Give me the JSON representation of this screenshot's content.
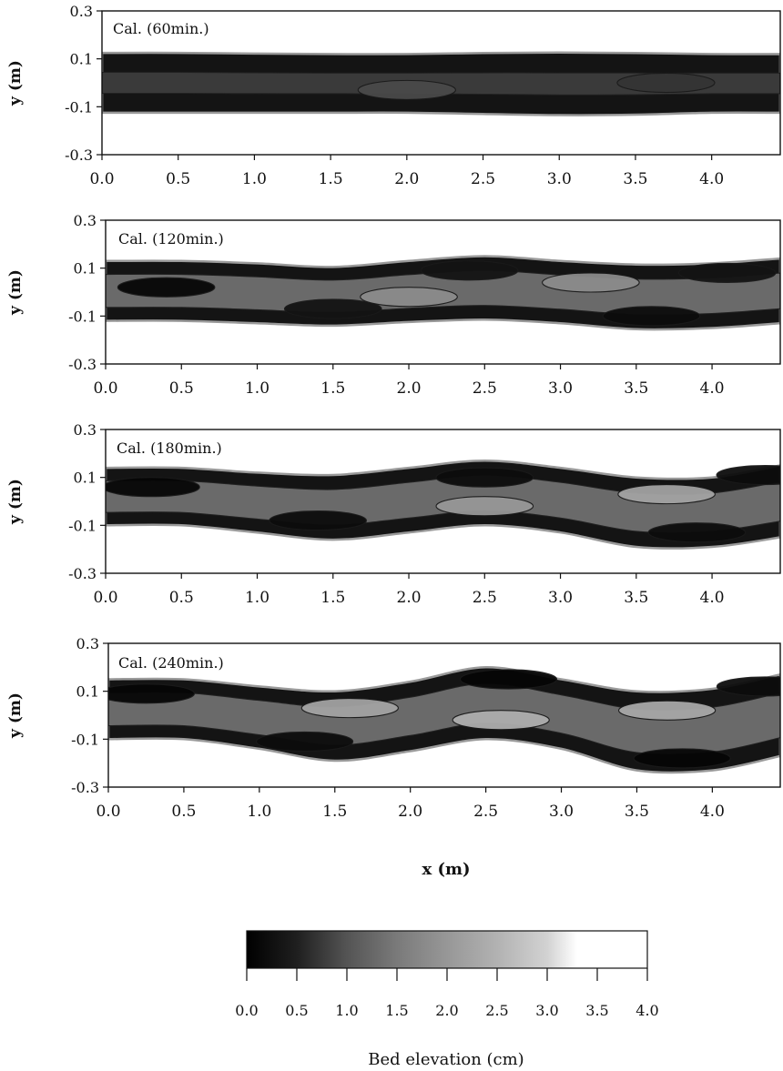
{
  "chart_data": [
    {
      "type": "heatmap",
      "title": "Cal. (60min.)",
      "xlabel": "",
      "ylabel": "y (m)",
      "xlim": [
        0.0,
        4.45
      ],
      "ylim": [
        -0.3,
        0.3
      ],
      "xticks": [
        "0.0",
        "0.5",
        "1.0",
        "1.5",
        "2.0",
        "2.5",
        "3.0",
        "3.5",
        "4.0"
      ],
      "yticks": [
        "0.3",
        "0.1",
        "-0.1",
        "-0.3"
      ],
      "channel": {
        "x": [
          0.0,
          0.5,
          1.0,
          1.5,
          2.0,
          2.5,
          3.0,
          3.5,
          4.0,
          4.45
        ],
        "upper": [
          0.125,
          0.125,
          0.122,
          0.12,
          0.12,
          0.124,
          0.126,
          0.124,
          0.12,
          0.12
        ],
        "lower": [
          -0.125,
          -0.125,
          -0.125,
          -0.125,
          -0.125,
          -0.13,
          -0.135,
          -0.133,
          -0.125,
          -0.125
        ]
      },
      "features": [
        {
          "x": 2.0,
          "y": -0.03,
          "elevation": 0.9
        },
        {
          "x": 3.7,
          "y": 0.0,
          "elevation": 0.7
        }
      ]
    },
    {
      "type": "heatmap",
      "title": "Cal. (120min.)",
      "xlabel": "",
      "ylabel": "y (m)",
      "xlim": [
        0.0,
        4.45
      ],
      "ylim": [
        -0.3,
        0.3
      ],
      "xticks": [
        "0.0",
        "0.5",
        "1.0",
        "1.5",
        "2.0",
        "2.5",
        "3.0",
        "3.5",
        "4.0"
      ],
      "yticks": [
        "0.3",
        "0.1",
        "-0.1",
        "-0.3"
      ],
      "channel": {
        "x": [
          0.0,
          0.5,
          1.0,
          1.5,
          2.0,
          2.5,
          3.0,
          3.5,
          4.0,
          4.45
        ],
        "upper": [
          0.13,
          0.13,
          0.12,
          0.105,
          0.13,
          0.15,
          0.13,
          0.115,
          0.12,
          0.14
        ],
        "lower": [
          -0.12,
          -0.12,
          -0.13,
          -0.14,
          -0.125,
          -0.115,
          -0.13,
          -0.155,
          -0.15,
          -0.13
        ]
      },
      "features": [
        {
          "x": 0.4,
          "y": 0.02,
          "elevation": 0.1
        },
        {
          "x": 1.5,
          "y": -0.07,
          "elevation": 0.3
        },
        {
          "x": 2.4,
          "y": 0.09,
          "elevation": 0.3
        },
        {
          "x": 3.6,
          "y": -0.1,
          "elevation": 0.2
        },
        {
          "x": 4.1,
          "y": 0.08,
          "elevation": 0.3
        },
        {
          "x": 2.0,
          "y": -0.02,
          "elevation": 1.8
        },
        {
          "x": 3.2,
          "y": 0.04,
          "elevation": 1.8
        }
      ]
    },
    {
      "type": "heatmap",
      "title": "Cal. (180min.)",
      "xlabel": "",
      "ylabel": "y (m)",
      "xlim": [
        0.0,
        4.45
      ],
      "ylim": [
        -0.3,
        0.3
      ],
      "xticks": [
        "0.0",
        "0.5",
        "1.0",
        "1.5",
        "2.0",
        "2.5",
        "3.0",
        "3.5",
        "4.0"
      ],
      "yticks": [
        "0.3",
        "0.1",
        "-0.1",
        "-0.3"
      ],
      "channel": {
        "x": [
          0.0,
          0.5,
          1.0,
          1.5,
          2.0,
          2.5,
          3.0,
          3.5,
          4.0,
          4.45
        ],
        "upper": [
          0.14,
          0.14,
          0.12,
          0.11,
          0.14,
          0.17,
          0.14,
          0.1,
          0.1,
          0.15
        ],
        "lower": [
          -0.1,
          -0.1,
          -0.13,
          -0.16,
          -0.13,
          -0.1,
          -0.13,
          -0.19,
          -0.19,
          -0.15
        ]
      },
      "features": [
        {
          "x": 0.3,
          "y": 0.06,
          "elevation": 0.1
        },
        {
          "x": 1.4,
          "y": -0.08,
          "elevation": 0.2
        },
        {
          "x": 2.5,
          "y": 0.1,
          "elevation": 0.2
        },
        {
          "x": 3.9,
          "y": -0.13,
          "elevation": 0.2
        },
        {
          "x": 4.35,
          "y": 0.11,
          "elevation": 0.2
        },
        {
          "x": 2.5,
          "y": -0.02,
          "elevation": 2.0
        },
        {
          "x": 3.7,
          "y": 0.03,
          "elevation": 2.2
        }
      ]
    },
    {
      "type": "heatmap",
      "title": "Cal. (240min.)",
      "xlabel": "x (m)",
      "ylabel": "y (m)",
      "xlim": [
        0.0,
        4.45
      ],
      "ylim": [
        -0.3,
        0.3
      ],
      "xticks": [
        "0.0",
        "0.5",
        "1.0",
        "1.5",
        "2.0",
        "2.5",
        "3.0",
        "3.5",
        "4.0"
      ],
      "yticks": [
        "0.3",
        "0.1",
        "-0.1",
        "-0.3"
      ],
      "channel": {
        "x": [
          0.0,
          0.5,
          1.0,
          1.5,
          2.0,
          2.5,
          3.0,
          3.5,
          4.0,
          4.45
        ],
        "upper": [
          0.15,
          0.15,
          0.12,
          0.1,
          0.14,
          0.2,
          0.15,
          0.1,
          0.11,
          0.17
        ],
        "lower": [
          -0.1,
          -0.1,
          -0.14,
          -0.19,
          -0.15,
          -0.1,
          -0.14,
          -0.23,
          -0.23,
          -0.17
        ]
      },
      "features": [
        {
          "x": 0.25,
          "y": 0.09,
          "elevation": 0.1
        },
        {
          "x": 1.3,
          "y": -0.11,
          "elevation": 0.2
        },
        {
          "x": 2.65,
          "y": 0.15,
          "elevation": 0.1
        },
        {
          "x": 3.8,
          "y": -0.18,
          "elevation": 0.1
        },
        {
          "x": 4.35,
          "y": 0.12,
          "elevation": 0.2
        },
        {
          "x": 1.6,
          "y": 0.03,
          "elevation": 2.2
        },
        {
          "x": 2.6,
          "y": -0.02,
          "elevation": 2.4
        },
        {
          "x": 3.7,
          "y": 0.02,
          "elevation": 2.3
        }
      ]
    }
  ],
  "colorbar": {
    "label": "Bed elevation (cm)",
    "min": 0.0,
    "max": 4.0,
    "ticks": [
      "0.0",
      "0.5",
      "1.0",
      "1.5",
      "2.0",
      "2.5",
      "3.0",
      "3.5",
      "4.0"
    ],
    "stops": [
      {
        "value": 0.0,
        "color": "#000000"
      },
      {
        "value": 0.5,
        "color": "#1f1f1f"
      },
      {
        "value": 1.0,
        "color": "#545454"
      },
      {
        "value": 1.5,
        "color": "#7a7a7a"
      },
      {
        "value": 2.0,
        "color": "#979797"
      },
      {
        "value": 2.5,
        "color": "#b2b2b2"
      },
      {
        "value": 3.0,
        "color": "#d2d2d2"
      },
      {
        "value": 3.3,
        "color": "#ffffff"
      },
      {
        "value": 4.0,
        "color": "#ffffff"
      }
    ]
  }
}
